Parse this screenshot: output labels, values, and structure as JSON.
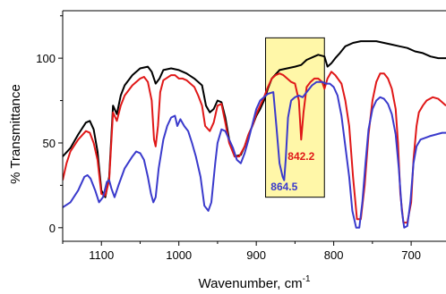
{
  "chart_data": {
    "type": "line",
    "xlabel": "Wavenumber, cm",
    "xlabel_sup": "-1",
    "ylabel": "% Transmittance",
    "xlim": [
      1150,
      655
    ],
    "ylim": [
      -8,
      128
    ],
    "x_reversed": true,
    "x_ticks": [
      1100,
      1000,
      900,
      800,
      700
    ],
    "x_tick_labels": [
      "1100",
      "1000",
      "900",
      "800",
      "700"
    ],
    "y_ticks": [
      0,
      50,
      100
    ],
    "y_tick_labels": [
      "0",
      "50",
      "100"
    ],
    "grid": false,
    "legend": "none",
    "highlight_region": {
      "x": [
        888,
        812
      ],
      "y": [
        18,
        112
      ],
      "color": "#fff7a8"
    },
    "annotations": [
      {
        "text": "842.2",
        "x": 842,
        "y": 40,
        "color": "#e01818"
      },
      {
        "text": "864.5",
        "x": 864,
        "y": 22,
        "color": "#3a3acc"
      }
    ],
    "series": [
      {
        "color": "#000000",
        "points": [
          [
            1150,
            42
          ],
          [
            1140,
            47
          ],
          [
            1130,
            55
          ],
          [
            1120,
            62
          ],
          [
            1115,
            63
          ],
          [
            1110,
            58
          ],
          [
            1105,
            45
          ],
          [
            1100,
            22
          ],
          [
            1095,
            18
          ],
          [
            1090,
            30
          ],
          [
            1085,
            72
          ],
          [
            1080,
            67
          ],
          [
            1075,
            78
          ],
          [
            1070,
            84
          ],
          [
            1060,
            90
          ],
          [
            1050,
            94
          ],
          [
            1040,
            95
          ],
          [
            1035,
            92
          ],
          [
            1030,
            85
          ],
          [
            1025,
            88
          ],
          [
            1020,
            93
          ],
          [
            1010,
            94
          ],
          [
            1000,
            93
          ],
          [
            990,
            91
          ],
          [
            980,
            88
          ],
          [
            970,
            84
          ],
          [
            965,
            72
          ],
          [
            960,
            68
          ],
          [
            955,
            70
          ],
          [
            950,
            75
          ],
          [
            945,
            74
          ],
          [
            940,
            65
          ],
          [
            935,
            52
          ],
          [
            928,
            42
          ],
          [
            920,
            43
          ],
          [
            915,
            48
          ],
          [
            910,
            55
          ],
          [
            905,
            60
          ],
          [
            900,
            66
          ],
          [
            895,
            70
          ],
          [
            890,
            75
          ],
          [
            885,
            82
          ],
          [
            880,
            88
          ],
          [
            870,
            93
          ],
          [
            860,
            94
          ],
          [
            850,
            95
          ],
          [
            842,
            96
          ],
          [
            835,
            99
          ],
          [
            825,
            101
          ],
          [
            820,
            102
          ],
          [
            812,
            101
          ],
          [
            808,
            95
          ],
          [
            803,
            97
          ],
          [
            798,
            100
          ],
          [
            792,
            103
          ],
          [
            785,
            107
          ],
          [
            775,
            109
          ],
          [
            765,
            110
          ],
          [
            755,
            110
          ],
          [
            745,
            110
          ],
          [
            735,
            109
          ],
          [
            725,
            108
          ],
          [
            715,
            107
          ],
          [
            705,
            106
          ],
          [
            695,
            104
          ],
          [
            685,
            103
          ],
          [
            675,
            101
          ],
          [
            665,
            100
          ],
          [
            655,
            100
          ]
        ]
      },
      {
        "color": "#e01818",
        "points": [
          [
            1150,
            28
          ],
          [
            1145,
            38
          ],
          [
            1140,
            45
          ],
          [
            1130,
            52
          ],
          [
            1120,
            57
          ],
          [
            1115,
            56
          ],
          [
            1110,
            50
          ],
          [
            1105,
            40
          ],
          [
            1100,
            20
          ],
          [
            1095,
            19
          ],
          [
            1090,
            28
          ],
          [
            1085,
            68
          ],
          [
            1080,
            63
          ],
          [
            1075,
            72
          ],
          [
            1070,
            78
          ],
          [
            1060,
            84
          ],
          [
            1050,
            88
          ],
          [
            1045,
            89
          ],
          [
            1040,
            86
          ],
          [
            1035,
            75
          ],
          [
            1032,
            52
          ],
          [
            1030,
            48
          ],
          [
            1027,
            60
          ],
          [
            1024,
            80
          ],
          [
            1020,
            87
          ],
          [
            1010,
            90
          ],
          [
            1005,
            90
          ],
          [
            1000,
            88
          ],
          [
            995,
            88
          ],
          [
            990,
            87
          ],
          [
            985,
            85
          ],
          [
            980,
            83
          ],
          [
            975,
            78
          ],
          [
            970,
            72
          ],
          [
            966,
            60
          ],
          [
            960,
            57
          ],
          [
            955,
            62
          ],
          [
            950,
            72
          ],
          [
            945,
            73
          ],
          [
            940,
            62
          ],
          [
            935,
            50
          ],
          [
            928,
            42
          ],
          [
            922,
            42
          ],
          [
            915,
            48
          ],
          [
            910,
            55
          ],
          [
            905,
            60
          ],
          [
            900,
            67
          ],
          [
            895,
            72
          ],
          [
            890,
            77
          ],
          [
            885,
            83
          ],
          [
            880,
            88
          ],
          [
            875,
            90
          ],
          [
            870,
            91
          ],
          [
            865,
            90
          ],
          [
            860,
            88
          ],
          [
            855,
            86
          ],
          [
            850,
            85
          ],
          [
            845,
            75
          ],
          [
            842,
            52
          ],
          [
            839,
            68
          ],
          [
            835,
            83
          ],
          [
            830,
            86
          ],
          [
            825,
            88
          ],
          [
            820,
            88
          ],
          [
            815,
            86
          ],
          [
            812,
            82
          ],
          [
            808,
            88
          ],
          [
            803,
            92
          ],
          [
            798,
            90
          ],
          [
            790,
            85
          ],
          [
            785,
            75
          ],
          [
            780,
            60
          ],
          [
            775,
            30
          ],
          [
            770,
            5
          ],
          [
            765,
            5
          ],
          [
            760,
            25
          ],
          [
            755,
            55
          ],
          [
            750,
            75
          ],
          [
            745,
            86
          ],
          [
            740,
            91
          ],
          [
            735,
            91
          ],
          [
            730,
            88
          ],
          [
            725,
            82
          ],
          [
            720,
            70
          ],
          [
            717,
            50
          ],
          [
            714,
            20
          ],
          [
            710,
            3
          ],
          [
            705,
            3
          ],
          [
            700,
            15
          ],
          [
            697,
            40
          ],
          [
            693,
            60
          ],
          [
            690,
            68
          ],
          [
            685,
            72
          ],
          [
            680,
            75
          ],
          [
            672,
            77
          ],
          [
            665,
            76
          ],
          [
            660,
            74
          ],
          [
            655,
            72
          ]
        ]
      },
      {
        "color": "#3a3acc",
        "points": [
          [
            1150,
            12
          ],
          [
            1140,
            15
          ],
          [
            1130,
            22
          ],
          [
            1122,
            30
          ],
          [
            1118,
            31
          ],
          [
            1114,
            29
          ],
          [
            1108,
            22
          ],
          [
            1103,
            15
          ],
          [
            1098,
            18
          ],
          [
            1093,
            27
          ],
          [
            1090,
            28
          ],
          [
            1087,
            23
          ],
          [
            1083,
            18
          ],
          [
            1078,
            25
          ],
          [
            1070,
            35
          ],
          [
            1060,
            42
          ],
          [
            1055,
            45
          ],
          [
            1050,
            44
          ],
          [
            1045,
            40
          ],
          [
            1040,
            30
          ],
          [
            1036,
            20
          ],
          [
            1033,
            15
          ],
          [
            1030,
            18
          ],
          [
            1026,
            35
          ],
          [
            1020,
            52
          ],
          [
            1015,
            60
          ],
          [
            1010,
            65
          ],
          [
            1005,
            66
          ],
          [
            1002,
            60
          ],
          [
            998,
            64
          ],
          [
            993,
            60
          ],
          [
            988,
            57
          ],
          [
            983,
            50
          ],
          [
            978,
            42
          ],
          [
            972,
            30
          ],
          [
            967,
            13
          ],
          [
            962,
            10
          ],
          [
            958,
            15
          ],
          [
            953,
            38
          ],
          [
            950,
            50
          ],
          [
            945,
            58
          ],
          [
            940,
            57
          ],
          [
            935,
            52
          ],
          [
            930,
            47
          ],
          [
            925,
            40
          ],
          [
            920,
            38
          ],
          [
            915,
            44
          ],
          [
            910,
            52
          ],
          [
            905,
            61
          ],
          [
            900,
            70
          ],
          [
            895,
            75
          ],
          [
            890,
            77
          ],
          [
            885,
            79
          ],
          [
            878,
            80
          ],
          [
            874,
            60
          ],
          [
            870,
            38
          ],
          [
            866,
            30
          ],
          [
            864,
            28
          ],
          [
            862,
            40
          ],
          [
            859,
            65
          ],
          [
            855,
            75
          ],
          [
            850,
            77
          ],
          [
            845,
            78
          ],
          [
            840,
            77
          ],
          [
            835,
            80
          ],
          [
            828,
            84
          ],
          [
            822,
            86
          ],
          [
            815,
            86
          ],
          [
            810,
            85
          ],
          [
            805,
            85
          ],
          [
            800,
            83
          ],
          [
            795,
            78
          ],
          [
            790,
            66
          ],
          [
            785,
            48
          ],
          [
            780,
            30
          ],
          [
            776,
            10
          ],
          [
            771,
            0
          ],
          [
            767,
            0
          ],
          [
            763,
            15
          ],
          [
            759,
            38
          ],
          [
            755,
            58
          ],
          [
            750,
            70
          ],
          [
            745,
            75
          ],
          [
            740,
            77
          ],
          [
            735,
            76
          ],
          [
            730,
            73
          ],
          [
            725,
            67
          ],
          [
            720,
            55
          ],
          [
            716,
            35
          ],
          [
            712,
            10
          ],
          [
            709,
            0
          ],
          [
            705,
            1
          ],
          [
            701,
            15
          ],
          [
            697,
            38
          ],
          [
            693,
            48
          ],
          [
            688,
            52
          ],
          [
            682,
            53
          ],
          [
            676,
            54
          ],
          [
            668,
            55
          ],
          [
            660,
            56
          ],
          [
            655,
            56
          ]
        ]
      }
    ]
  }
}
